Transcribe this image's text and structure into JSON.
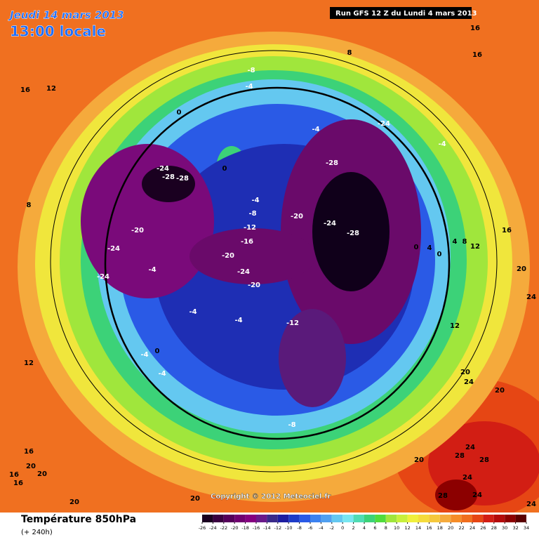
{
  "header": {
    "title": "Jeudi 14 mars 2013",
    "subtitle": "13:00 locale",
    "run": "Run GFS 12 Z du Lundi 4 mars 2013"
  },
  "map": {
    "contour_labels": [
      0,
      -8,
      -4,
      8,
      16,
      16,
      16,
      12,
      -4,
      -24,
      -4,
      -24,
      -28,
      -28,
      -28,
      0,
      -4,
      -8,
      -12,
      -16,
      -20,
      -24,
      -28,
      -20,
      -24,
      -20,
      -24,
      -4,
      -24,
      -20,
      0,
      4,
      0,
      4,
      8,
      12,
      16,
      20,
      24,
      -4,
      -4,
      -12,
      12,
      0,
      -4,
      -4,
      12,
      20,
      24,
      20,
      -8,
      24,
      28,
      28,
      20,
      24,
      16,
      20,
      20,
      16,
      16,
      20,
      28,
      24,
      20,
      24,
      8
    ]
  },
  "footer": {
    "title": "Température 850hPa",
    "subtitle": "(+ 240h)",
    "copyright": "Copyright © 2012 Meteociel.fr"
  },
  "colorbar": {
    "ticks": [
      -26,
      -24,
      -22,
      -20,
      -18,
      -16,
      -14,
      -12,
      -10,
      -8,
      -6,
      -4,
      -2,
      0,
      2,
      4,
      6,
      8,
      10,
      12,
      14,
      16,
      18,
      20,
      22,
      24,
      26,
      28,
      30,
      32,
      34
    ],
    "colors": [
      "#1a0020",
      "#3a0040",
      "#55005a",
      "#700070",
      "#850080",
      "#6a1a8a",
      "#3a2a8a",
      "#1e1ea0",
      "#1e3cc8",
      "#2a5ae6",
      "#3c82f0",
      "#50a0f0",
      "#64c8f0",
      "#78e6f0",
      "#50dcb4",
      "#3cd278",
      "#50dc3c",
      "#a0e63c",
      "#c8f03c",
      "#f0f03c",
      "#f5dc3c",
      "#f5c83c",
      "#f5aa3c",
      "#f58c28",
      "#f06e1e",
      "#e64614",
      "#d21e14",
      "#b40a0a",
      "#8c0000",
      "#5a0000"
    ]
  }
}
